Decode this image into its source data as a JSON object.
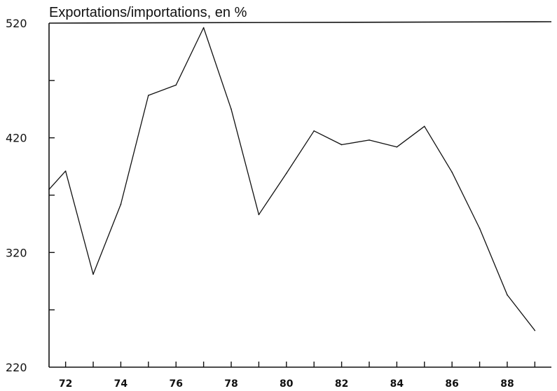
{
  "chart_data": {
    "type": "line",
    "title": "Exportations/importations, en %",
    "xlabel": "",
    "ylabel": "",
    "ylim": [
      220,
      520
    ],
    "yticks": [
      220,
      320,
      420,
      520
    ],
    "xlim": [
      71.4,
      89.6
    ],
    "xticks": [
      "72",
      "74",
      "76",
      "78",
      "80",
      "82",
      "84",
      "86",
      "88"
    ],
    "grid": false,
    "series": [
      {
        "x": [
          71.4,
          72,
          73,
          74,
          75,
          76,
          77,
          78,
          79,
          80,
          81,
          82,
          83,
          84,
          85,
          86,
          87,
          88,
          89
        ],
        "values": [
          375,
          391,
          301,
          362,
          457,
          466,
          516,
          445,
          353,
          389,
          426,
          414,
          418,
          412,
          430,
          390,
          341,
          283,
          252
        ]
      }
    ]
  }
}
